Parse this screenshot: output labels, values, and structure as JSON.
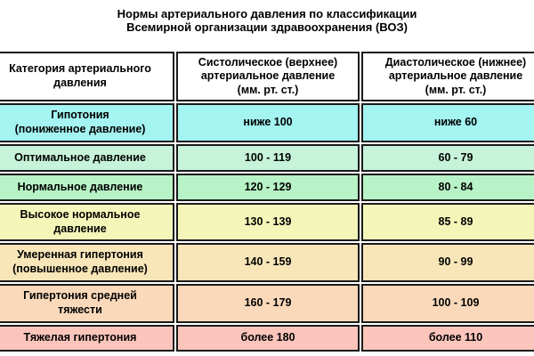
{
  "title": {
    "line1": "Нормы артериального давления по классификации",
    "line2": "Всемирной организации здравоохранения (ВОЗ)"
  },
  "chart_data": {
    "type": "table",
    "title": "Нормы артериального давления по классификации Всемирной организации здравоохранения (ВОЗ)",
    "columns": [
      "Категория артериального\nдавления",
      "Систолическое (верхнее)\nартериальное давление\n(мм. рт. ст.)",
      "Диастолическое (нижнее)\nартериальное давление\n(мм. рт. ст.)"
    ],
    "rows": [
      {
        "category": "Гипотония\n(пониженное давление)",
        "systolic": "ниже 100",
        "diastolic": "ниже 60",
        "row_color": "#a4f4f2"
      },
      {
        "category": "Оптимальное давление",
        "systolic": "100 - 119",
        "diastolic": "60 - 79",
        "row_color": "#c6f3da"
      },
      {
        "category": "Нормальное давление",
        "systolic": "120 - 129",
        "diastolic": "80 - 84",
        "row_color": "#b7f3c6"
      },
      {
        "category": "Высокое нормальное\nдавление",
        "systolic": "130 - 139",
        "diastolic": "85 - 89",
        "row_color": "#f4f6b9"
      },
      {
        "category": "Умеренная гипертония\n(повышенное давление)",
        "systolic": "140 - 159",
        "diastolic": "90 - 99",
        "row_color": "#f8e6b9"
      },
      {
        "category": "Гипертония средней\nтяжести",
        "systolic": "160 - 179",
        "diastolic": "100 - 109",
        "row_color": "#f9d9ba"
      },
      {
        "category": "Тяжелая гипертония",
        "systolic": "более 180",
        "diastolic": "более 110",
        "row_color": "#fbc5bc"
      }
    ],
    "colors": {
      "border": "#1a1a1a",
      "header_bg": "#ffffff",
      "text": "#000000"
    }
  }
}
